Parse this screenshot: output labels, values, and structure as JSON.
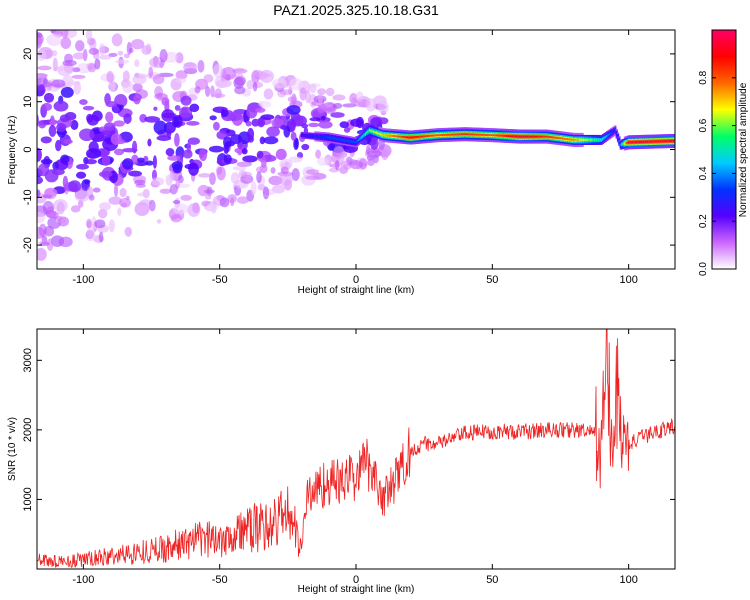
{
  "title": "PAZ1.2025.325.10.18.G31",
  "chart_data": [
    {
      "type": "heatmap",
      "xlabel": "Height of straight line (km)",
      "ylabel": "Frequency (Hz)",
      "xlim": [
        -117,
        117
      ],
      "ylim": [
        -25,
        25
      ],
      "xticks": [
        -100,
        -50,
        0,
        50,
        100
      ],
      "yticks": [
        -20,
        -10,
        0,
        10,
        20
      ],
      "colorbar": {
        "label": "Normalized spectral amplitude",
        "range": [
          0.0,
          1.0
        ],
        "ticks": [
          0.0,
          0.2,
          0.4,
          0.6,
          0.8
        ],
        "colormap": [
          "#ffffff",
          "#cc66ff",
          "#5500ff",
          "#0033ff",
          "#00ccff",
          "#00ff66",
          "#ffff00",
          "#ff6600",
          "#ff0000",
          "#ff0066"
        ]
      },
      "ridge": {
        "description": "dominant frequency band vs height",
        "x": [
          -20,
          -10,
          -5,
          0,
          5,
          10,
          20,
          30,
          40,
          50,
          60,
          70,
          80,
          90,
          95,
          97,
          100,
          117
        ],
        "frequency": [
          3.0,
          2.5,
          2.0,
          1.5,
          4.0,
          3.0,
          2.5,
          3.0,
          3.2,
          3.0,
          2.7,
          2.7,
          2.0,
          2.0,
          4.0,
          1.0,
          1.5,
          1.8
        ],
        "amplitude": [
          0.25,
          0.35,
          0.35,
          0.35,
          0.6,
          0.7,
          0.9,
          0.8,
          0.85,
          0.8,
          0.95,
          0.85,
          0.75,
          0.5,
          0.3,
          0.4,
          0.95,
          0.95
        ]
      }
    },
    {
      "type": "line",
      "xlabel": "Height of straight line (km)",
      "ylabel": "SNR (10 * v/v)",
      "xlim": [
        -117,
        117
      ],
      "ylim": [
        0,
        3450
      ],
      "xticks": [
        -100,
        -50,
        0,
        50,
        100
      ],
      "yticks": [
        1000,
        2000,
        3000
      ],
      "color": "#ee2222",
      "series": [
        {
          "name": "SNR",
          "x": [
            -117,
            -110,
            -100,
            -90,
            -80,
            -70,
            -60,
            -50,
            -40,
            -30,
            -25,
            -20,
            -18,
            -15,
            -10,
            -5,
            0,
            5,
            10,
            15,
            20,
            25,
            30,
            40,
            50,
            60,
            70,
            80,
            88,
            90,
            92,
            94,
            96,
            98,
            100,
            110,
            117
          ],
          "values": [
            120,
            100,
            130,
            180,
            240,
            300,
            400,
            450,
            560,
            650,
            850,
            300,
            1050,
            1150,
            1250,
            1250,
            1350,
            1550,
            1000,
            1300,
            1700,
            1800,
            1800,
            1950,
            1980,
            1970,
            2000,
            2000,
            1950,
            1700,
            3200,
            1500,
            2700,
            1700,
            1800,
            1980,
            2050
          ]
        }
      ]
    }
  ]
}
